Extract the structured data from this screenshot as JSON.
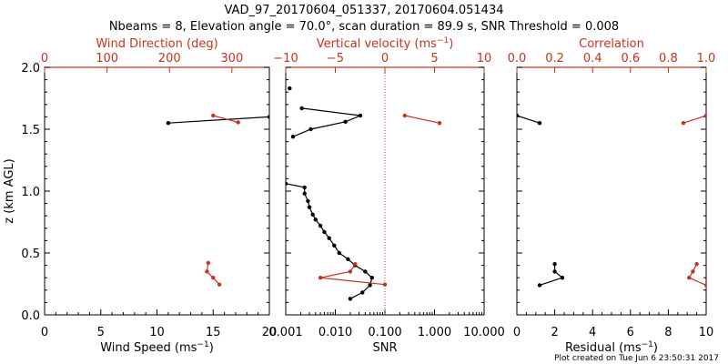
{
  "header": {
    "line1": "VAD_97_20170604_051337, 20170604.051434",
    "line2": "Nbeams = 8, Elevation angle = 70.0°, scan duration = 89.9 s, SNR Threshold = 0.008"
  },
  "footer": "Plot created on Tue Jun  6 23:50:31 2017",
  "colors": {
    "black": "#000000",
    "red": "#c8321e"
  },
  "chart_data": [
    {
      "type": "line",
      "panel": "wind",
      "ylabel": "z (km AGL)",
      "ylim": [
        0.0,
        2.0
      ],
      "yticks": [
        "0.0",
        "0.5",
        "1.0",
        "1.5",
        "2.0"
      ],
      "bottom_axis": {
        "label": "Wind Speed (ms",
        "label_sup": "−1",
        "label_end": ")",
        "range": [
          0,
          20
        ],
        "ticks": [
          "0",
          "5",
          "10",
          "15",
          "20"
        ]
      },
      "top_axis": {
        "label": "Wind Direction (deg)",
        "range": [
          0,
          360
        ],
        "ticks": [
          "0",
          "100",
          "200",
          "300"
        ]
      },
      "series": [
        {
          "axis": "bottom",
          "color": "black",
          "segments": [
            [
              [
                11.0,
                1.55
              ],
              [
                20.0,
                1.6
              ]
            ]
          ]
        },
        {
          "axis": "top",
          "color": "red",
          "segments": [
            [
              [
                270,
                1.61
              ],
              [
                310,
                1.555
              ]
            ],
            [
              [
                262,
                0.42
              ],
              [
                260,
                0.35
              ],
              [
                270,
                0.3
              ],
              [
                280,
                0.245
              ]
            ]
          ]
        }
      ]
    },
    {
      "type": "line",
      "panel": "snr",
      "ylim": [
        0.0,
        2.0
      ],
      "bottom_axis": {
        "label": "SNR",
        "scale": "log",
        "range": [
          0.001,
          10.0
        ],
        "ticks": [
          "0.001",
          "0.010",
          "0.100",
          "1.000",
          "10.000"
        ]
      },
      "top_axis": {
        "label": "Vertical velocity (ms",
        "label_sup": "−1",
        "label_end": ")",
        "range": [
          -10,
          10
        ],
        "ticks": [
          "−10",
          "−5",
          "0",
          "5",
          "10"
        ],
        "zero_line": "dotted"
      },
      "series": [
        {
          "axis": "bottom",
          "color": "black",
          "segments": [
            [
              [
                0.0012,
                1.83
              ]
            ],
            [
              [
                0.0014,
                1.44
              ],
              [
                0.0032,
                1.5
              ],
              [
                0.016,
                1.56
              ],
              [
                0.032,
                1.61
              ],
              [
                0.0021,
                1.67
              ]
            ],
            [
              [
                0.001,
                1.06
              ],
              [
                0.0024,
                1.03
              ],
              [
                0.0024,
                0.98
              ],
              [
                0.0028,
                0.92
              ],
              [
                0.003,
                0.87
              ],
              [
                0.0035,
                0.81
              ],
              [
                0.004,
                0.77
              ],
              [
                0.005,
                0.72
              ],
              [
                0.006,
                0.67
              ],
              [
                0.0075,
                0.62
              ],
              [
                0.0095,
                0.56
              ],
              [
                0.012,
                0.5
              ],
              [
                0.018,
                0.45
              ],
              [
                0.025,
                0.4
              ],
              [
                0.04,
                0.35
              ],
              [
                0.055,
                0.3
              ],
              [
                0.05,
                0.24
              ],
              [
                0.035,
                0.18
              ],
              [
                0.02,
                0.13
              ]
            ]
          ]
        },
        {
          "axis": "top",
          "color": "red",
          "segments": [
            [
              [
                2.0,
                1.61
              ],
              [
                5.5,
                1.55
              ]
            ],
            [
              [
                -3.0,
                0.41
              ],
              [
                -3.5,
                0.35
              ],
              [
                -6.5,
                0.3
              ],
              [
                0.0,
                0.245
              ]
            ]
          ]
        }
      ]
    },
    {
      "type": "line",
      "panel": "residual",
      "ylim": [
        0.0,
        2.0
      ],
      "bottom_axis": {
        "label": "Residual (ms",
        "label_sup": "−1",
        "label_end": ")",
        "range": [
          0,
          10
        ],
        "ticks": [
          "0",
          "2",
          "4",
          "6",
          "8",
          "10"
        ]
      },
      "top_axis": {
        "label": "Correlation",
        "range": [
          0.0,
          1.0
        ],
        "ticks": [
          "0.0",
          "0.2",
          "0.4",
          "0.6",
          "0.8",
          "1.0"
        ]
      },
      "series": [
        {
          "axis": "bottom",
          "color": "black",
          "segments": [
            [
              [
                0.0,
                1.61
              ],
              [
                1.2,
                1.55
              ]
            ],
            [
              [
                2.0,
                0.41
              ],
              [
                2.0,
                0.35
              ],
              [
                2.4,
                0.3
              ],
              [
                1.2,
                0.24
              ]
            ]
          ]
        },
        {
          "axis": "top",
          "color": "red",
          "segments": [
            [
              [
                1.0,
                1.61
              ],
              [
                0.88,
                1.55
              ]
            ],
            [
              [
                0.95,
                0.41
              ],
              [
                0.93,
                0.35
              ],
              [
                0.91,
                0.3
              ],
              [
                1.0,
                0.24
              ]
            ]
          ]
        }
      ]
    }
  ]
}
